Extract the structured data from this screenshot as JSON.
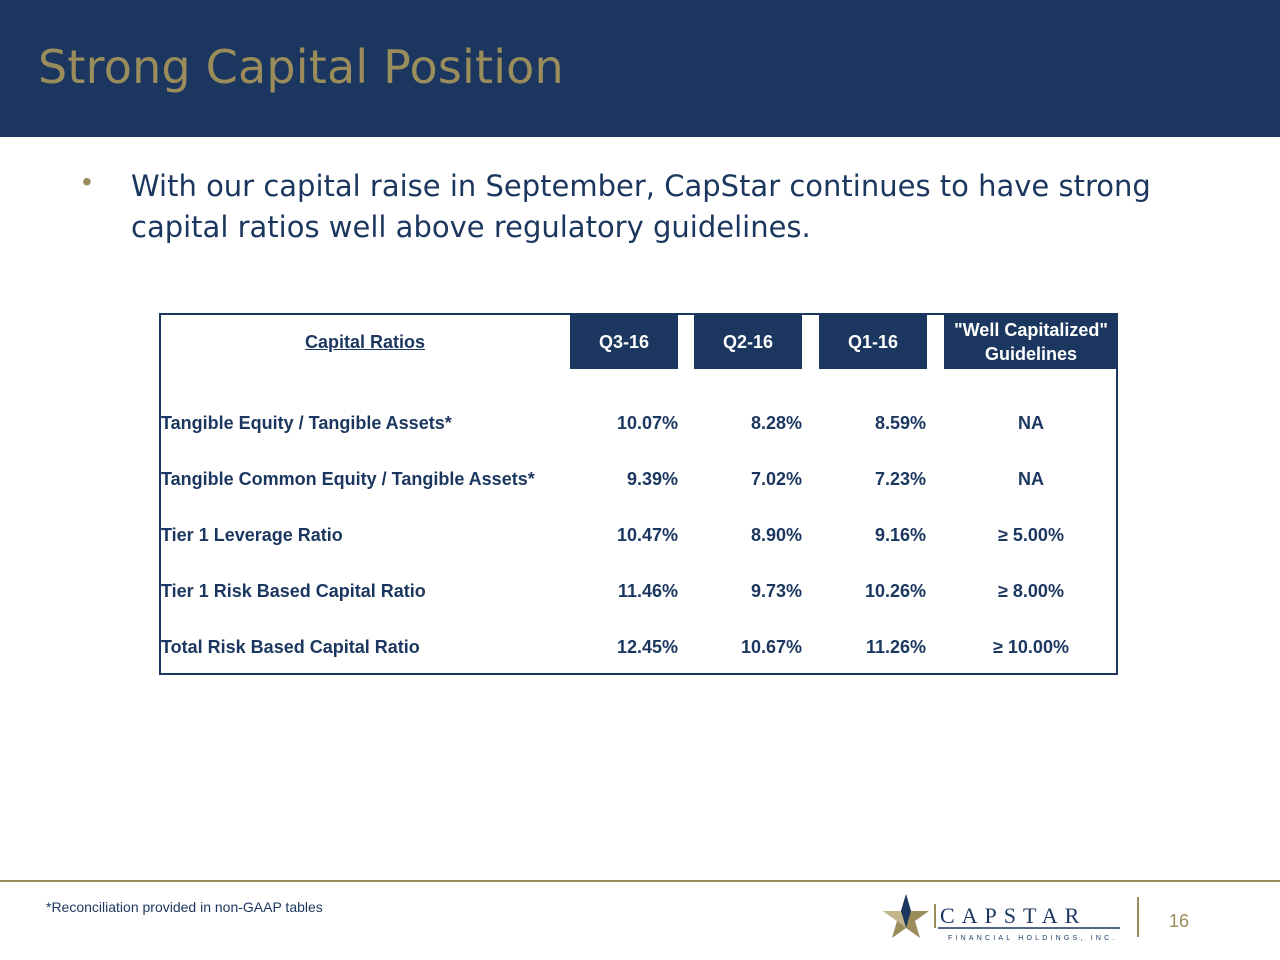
{
  "slide": {
    "title": "Strong Capital Position",
    "bullet_symbol": "•",
    "bullet_text": "With our capital raise in September, CapStar continues to have strong capital ratios well above regulatory guidelines."
  },
  "table": {
    "header_label": "Capital Ratios",
    "columns": [
      "Q3-16",
      "Q2-16",
      "Q1-16"
    ],
    "guideline_header_line1": "\"Well Capitalized\"",
    "guideline_header_line2": "Guidelines",
    "rows": [
      {
        "label": "Tangible Equity / Tangible Assets*",
        "q3": "10.07%",
        "q2": "8.28%",
        "q1": "8.59%",
        "guide": "NA"
      },
      {
        "label": "Tangible Common Equity / Tangible Assets*",
        "q3": "9.39%",
        "q2": "7.02%",
        "q1": "7.23%",
        "guide": "NA"
      },
      {
        "label": "Tier 1 Leverage Ratio",
        "q3": "10.47%",
        "q2": "8.90%",
        "q1": "9.16%",
        "guide": "≥ 5.00%"
      },
      {
        "label": "Tier 1 Risk Based Capital Ratio",
        "q3": "11.46%",
        "q2": "9.73%",
        "q1": "10.26%",
        "guide": "≥ 8.00%"
      },
      {
        "label": "Total Risk Based Capital Ratio",
        "q3": "12.45%",
        "q2": "10.67%",
        "q1": "11.26%",
        "guide": "≥ 10.00%"
      }
    ]
  },
  "footer": {
    "footnote": "*Reconciliation provided in non-GAAP tables",
    "logo_name": "CAPSTAR",
    "logo_sub": "FINANCIAL HOLDINGS, INC.",
    "page_number": "16"
  },
  "colors": {
    "navy": "#1b375f",
    "gold": "#9a8c5b"
  }
}
